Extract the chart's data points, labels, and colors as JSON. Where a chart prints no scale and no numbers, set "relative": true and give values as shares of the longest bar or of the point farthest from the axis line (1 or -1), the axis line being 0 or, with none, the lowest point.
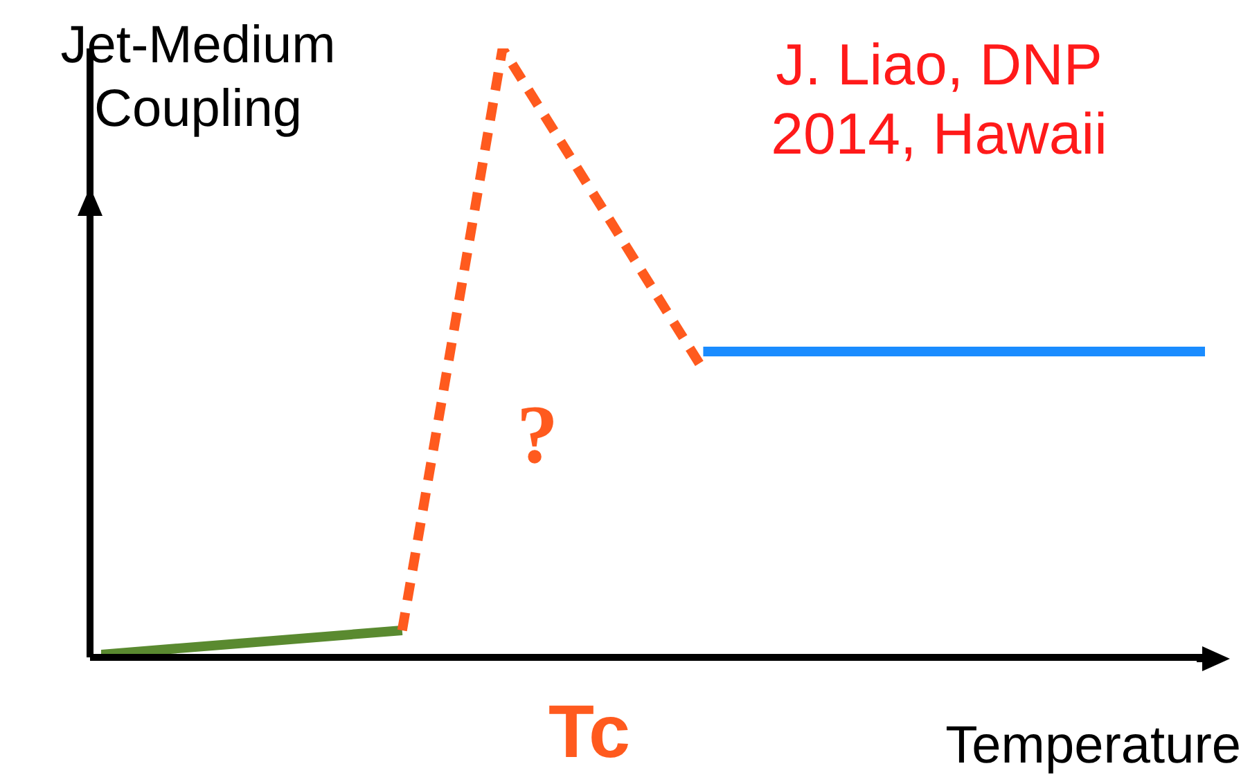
{
  "chart_data": {
    "type": "line",
    "relative": true,
    "ylabel": "Jet-Medium Coupling",
    "xlabel": "Temperature",
    "annotations": [
      "J. Liao, DNP 2014, Hawaii",
      "?",
      "Tc"
    ],
    "categories": [
      null,
      null,
      null,
      null,
      null,
      null,
      null,
      null,
      null,
      null,
      null,
      null
    ],
    "series": [
      {
        "color": "#5a8a30",
        "values": [
          0,
          null,
          null,
          0.04,
          null,
          null,
          null,
          null,
          null,
          null,
          null,
          null
        ],
        "line_style": "solid"
      },
      {
        "color": "#ff5a1e",
        "values": [
          null,
          null,
          null,
          0.04,
          1,
          null,
          0.47,
          null,
          null,
          null,
          null,
          null
        ],
        "line_style": "dashed"
      },
      {
        "color": "#1a8cff",
        "values": [
          null,
          null,
          null,
          null,
          null,
          null,
          0.5,
          null,
          null,
          null,
          null,
          0.5
        ],
        "line_style": "solid"
      }
    ],
    "marker": "none",
    "legend": false,
    "grid": false
  }
}
